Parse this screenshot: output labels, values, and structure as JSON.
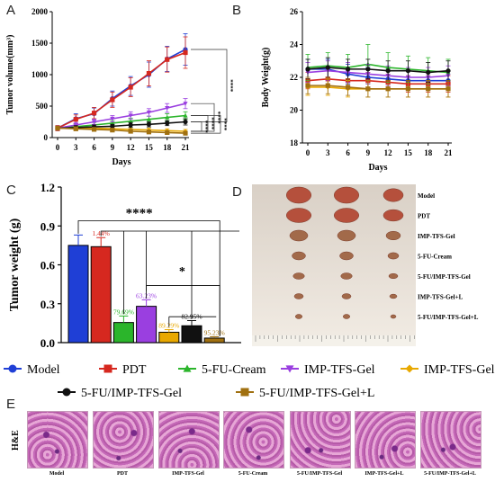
{
  "colors": {
    "Model": "#1f3fd6",
    "PDT": "#d6281f",
    "5-FU-Cream": "#2bb52b",
    "IMP-TFS-Gel": "#9a3fe0",
    "IMP-TFS-Gel+L": "#e8a800",
    "5-FU/IMP-TFS-Gel": "#111111",
    "5-FU/IMP-TFS-Gel+L": "#a07010"
  },
  "panels": {
    "A": "A",
    "B": "B",
    "C": "C",
    "D": "D",
    "E": "E"
  },
  "chart_data": [
    {
      "type": "line",
      "panel": "A",
      "xlabel": "Days",
      "ylabel": "Tumor volume(mm³)",
      "x": [
        0,
        3,
        6,
        9,
        12,
        15,
        18,
        21
      ],
      "xticks": [
        "0",
        "3",
        "6",
        "9",
        "12",
        "15",
        "18",
        "21"
      ],
      "ylim": [
        0,
        2000
      ],
      "yticks": [
        "0",
        "500",
        "1000",
        "1500",
        "2000"
      ],
      "series": [
        {
          "name": "Model",
          "values": [
            150,
            300,
            380,
            620,
            820,
            1000,
            1250,
            1400
          ],
          "err": [
            40,
            80,
            90,
            120,
            150,
            200,
            200,
            250
          ]
        },
        {
          "name": "PDT",
          "values": [
            150,
            290,
            390,
            600,
            800,
            1020,
            1240,
            1350
          ],
          "err": [
            40,
            70,
            90,
            120,
            150,
            200,
            200,
            250
          ]
        },
        {
          "name": "5-FU-Cream",
          "values": [
            150,
            175,
            200,
            230,
            260,
            290,
            320,
            350
          ],
          "err": [
            30,
            30,
            40,
            40,
            50,
            50,
            60,
            60
          ]
        },
        {
          "name": "IMP-TFS-Gel",
          "values": [
            150,
            200,
            250,
            300,
            350,
            400,
            470,
            540
          ],
          "err": [
            30,
            40,
            40,
            50,
            60,
            60,
            70,
            80
          ]
        },
        {
          "name": "IMP-TFS-Gel+L",
          "values": [
            150,
            150,
            150,
            140,
            130,
            120,
            110,
            100
          ],
          "err": [
            30,
            30,
            30,
            30,
            30,
            30,
            30,
            30
          ]
        },
        {
          "name": "5-FU/IMP-TFS-Gel",
          "values": [
            150,
            160,
            170,
            180,
            200,
            210,
            230,
            250
          ],
          "err": [
            30,
            30,
            30,
            30,
            40,
            40,
            40,
            50
          ]
        },
        {
          "name": "5-FU/IMP-TFS-Gel+L",
          "values": [
            150,
            140,
            130,
            120,
            100,
            90,
            80,
            70
          ],
          "err": [
            30,
            30,
            30,
            30,
            30,
            30,
            30,
            30
          ]
        }
      ],
      "significance": [
        "****",
        "****",
        "****",
        "****",
        "****"
      ]
    },
    {
      "type": "line",
      "panel": "B",
      "xlabel": "Days",
      "ylabel": "Body Weight(g)",
      "x": [
        0,
        3,
        6,
        9,
        12,
        15,
        18,
        21
      ],
      "xticks": [
        "0",
        "3",
        "6",
        "9",
        "12",
        "15",
        "18",
        "21"
      ],
      "ylim": [
        18,
        26
      ],
      "yticks": [
        "18",
        "20",
        "22",
        "24",
        "26"
      ],
      "series": [
        {
          "name": "Model",
          "values": [
            22.5,
            22.5,
            22.2,
            22.0,
            21.9,
            21.8,
            21.8,
            21.8
          ],
          "err": [
            0.6,
            0.6,
            0.6,
            0.6,
            0.6,
            0.6,
            0.6,
            0.6
          ]
        },
        {
          "name": "PDT",
          "values": [
            21.8,
            21.9,
            21.8,
            21.8,
            21.7,
            21.6,
            21.6,
            21.6
          ],
          "err": [
            0.5,
            0.5,
            0.5,
            0.5,
            0.5,
            0.5,
            0.5,
            0.5
          ]
        },
        {
          "name": "5-FU-Cream",
          "values": [
            22.6,
            22.7,
            22.6,
            22.8,
            22.6,
            22.5,
            22.4,
            22.3
          ],
          "err": [
            0.8,
            0.8,
            0.8,
            1.2,
            0.9,
            0.8,
            0.8,
            0.8
          ]
        },
        {
          "name": "IMP-TFS-Gel",
          "values": [
            22.3,
            22.4,
            22.3,
            22.2,
            22.1,
            22.0,
            22.0,
            22.1
          ],
          "err": [
            0.6,
            0.6,
            0.6,
            0.6,
            0.6,
            0.6,
            0.6,
            0.6
          ]
        },
        {
          "name": "IMP-TFS-Gel+L",
          "values": [
            21.4,
            21.4,
            21.3,
            21.3,
            21.3,
            21.3,
            21.3,
            21.3
          ],
          "err": [
            0.5,
            0.5,
            0.5,
            0.5,
            0.5,
            0.5,
            0.5,
            0.5
          ]
        },
        {
          "name": "5-FU/IMP-TFS-Gel",
          "values": [
            22.5,
            22.6,
            22.5,
            22.5,
            22.4,
            22.4,
            22.3,
            22.4
          ],
          "err": [
            0.6,
            0.6,
            0.6,
            0.6,
            0.6,
            0.6,
            0.6,
            0.6
          ]
        },
        {
          "name": "5-FU/IMP-TFS-Gel+L",
          "values": [
            21.5,
            21.5,
            21.4,
            21.3,
            21.3,
            21.3,
            21.3,
            21.3
          ],
          "err": [
            0.5,
            0.5,
            0.5,
            0.5,
            0.5,
            0.5,
            0.5,
            0.5
          ]
        }
      ]
    },
    {
      "type": "bar",
      "panel": "C",
      "ylabel": "Tumor weight (g)",
      "ylim": [
        0,
        1.2
      ],
      "yticks": [
        "0.0",
        "0.3",
        "0.6",
        "0.9",
        "1.2"
      ],
      "categories": [
        "Model",
        "PDT",
        "5-FU-Cream",
        "IMP-TFS-Gel",
        "IMP-TFS-Gel+L",
        "5-FU/IMP-TFS-Gel",
        "5-FU/IMP-TFS-Gel+L"
      ],
      "values": [
        0.75,
        0.74,
        0.155,
        0.28,
        0.08,
        0.13,
        0.035
      ],
      "err": [
        0.08,
        0.07,
        0.05,
        0.05,
        0.02,
        0.04,
        0.01
      ],
      "labels": [
        "",
        "1.44%",
        "79.69%",
        "63.23%",
        "89.29%",
        "82.95%",
        "95.23%"
      ],
      "significance": [
        "****",
        "*"
      ]
    }
  ],
  "legend": {
    "row1": [
      "Model",
      "PDT",
      "5-FU-Cream",
      "IMP-TFS-Gel",
      "IMP-TFS-Gel+L"
    ],
    "row2": [
      "5-FU/IMP-TFS-Gel",
      "5-FU/IMP-TFS-Gel+L"
    ],
    "markers": {
      "Model": "circle",
      "PDT": "square",
      "5-FU-Cream": "triangle-up",
      "IMP-TFS-Gel": "triangle-down",
      "IMP-TFS-Gel+L": "diamond",
      "5-FU/IMP-TFS-Gel": "circle",
      "5-FU/IMP-TFS-Gel+L": "square"
    }
  },
  "photo_d": {
    "labels": [
      "Model",
      "PDT",
      "IMP-TFS-Gel",
      "5-FU-Cream",
      "5-FU/IMP-TFS-Gel",
      "IMP-TFS-Gel+L",
      "5-FU/IMP-TFS-Gel+L"
    ]
  },
  "he": {
    "row_label": "H&E",
    "labels": [
      "Model",
      "PDT",
      "IMP-TFS-Gel",
      "5-FU-Cream",
      "5-FU/IMP-TFS-Gel",
      "IMP-TFS-Gel+L",
      "5-FU/IMP-TFS-Gel+L"
    ]
  }
}
